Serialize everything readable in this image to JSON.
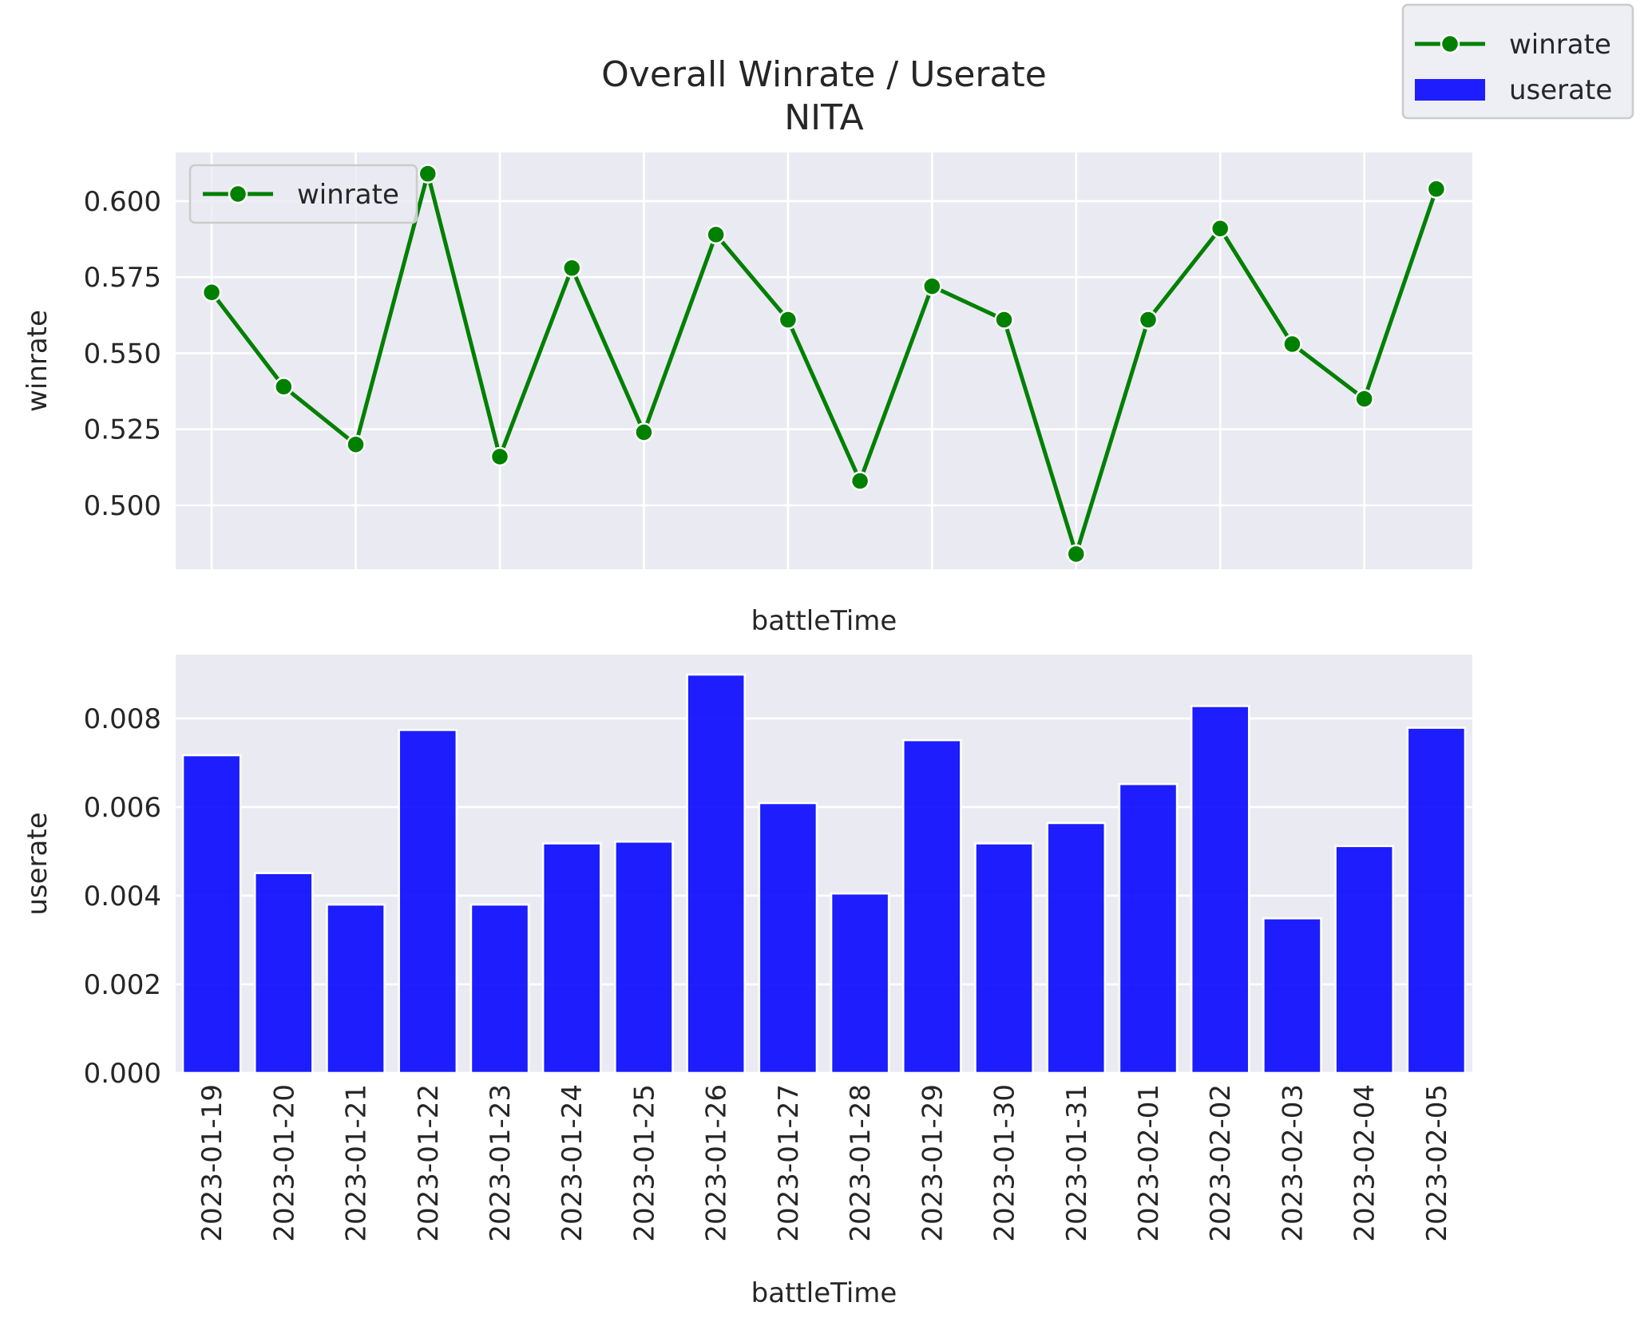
{
  "chart_data": {
    "type": "line+bar",
    "title": "Overall Winrate / Userate",
    "subtitle": "NITA",
    "categories": [
      "2023-01-19",
      "2023-01-20",
      "2023-01-21",
      "2023-01-22",
      "2023-01-23",
      "2023-01-24",
      "2023-01-25",
      "2023-01-26",
      "2023-01-27",
      "2023-01-28",
      "2023-01-29",
      "2023-01-30",
      "2023-01-31",
      "2023-02-01",
      "2023-02-02",
      "2023-02-03",
      "2023-02-04",
      "2023-02-05"
    ],
    "top": {
      "type": "line",
      "series": [
        {
          "name": "winrate",
          "color": "#008000",
          "values": [
            0.57,
            0.539,
            0.52,
            0.609,
            0.516,
            0.578,
            0.524,
            0.589,
            0.561,
            0.508,
            0.572,
            0.561,
            0.484,
            0.561,
            0.591,
            0.553,
            0.535,
            0.604
          ]
        }
      ],
      "xlabel": "battleTime",
      "ylabel": "winrate",
      "ylim": [
        0.479,
        0.616
      ],
      "yticks": [
        "0.500",
        "0.525",
        "0.550",
        "0.575",
        "0.600"
      ],
      "ytick_values": [
        0.5,
        0.525,
        0.55,
        0.575,
        0.6
      ],
      "legend": "upper left",
      "grid": true
    },
    "bottom": {
      "type": "bar",
      "series": [
        {
          "name": "userate",
          "color": "#0000ff",
          "values": [
            0.00717,
            0.00451,
            0.0038,
            0.00774,
            0.0038,
            0.00518,
            0.00522,
            0.00899,
            0.00609,
            0.00405,
            0.00751,
            0.00518,
            0.00564,
            0.00652,
            0.00828,
            0.00349,
            0.00512,
            0.00779
          ]
        }
      ],
      "xlabel": "battleTime",
      "ylabel": "userate",
      "ylim": [
        0,
        0.00944
      ],
      "yticks": [
        "0.000",
        "0.002",
        "0.004",
        "0.006",
        "0.008"
      ],
      "ytick_values": [
        0,
        0.002,
        0.004,
        0.006,
        0.008
      ],
      "grid": true
    },
    "figure_legend": {
      "placement": "top-right",
      "entries": [
        {
          "label": "winrate",
          "kind": "line-marker",
          "color": "#008000"
        },
        {
          "label": "userate",
          "kind": "patch",
          "color": "#0000ff"
        }
      ]
    }
  }
}
